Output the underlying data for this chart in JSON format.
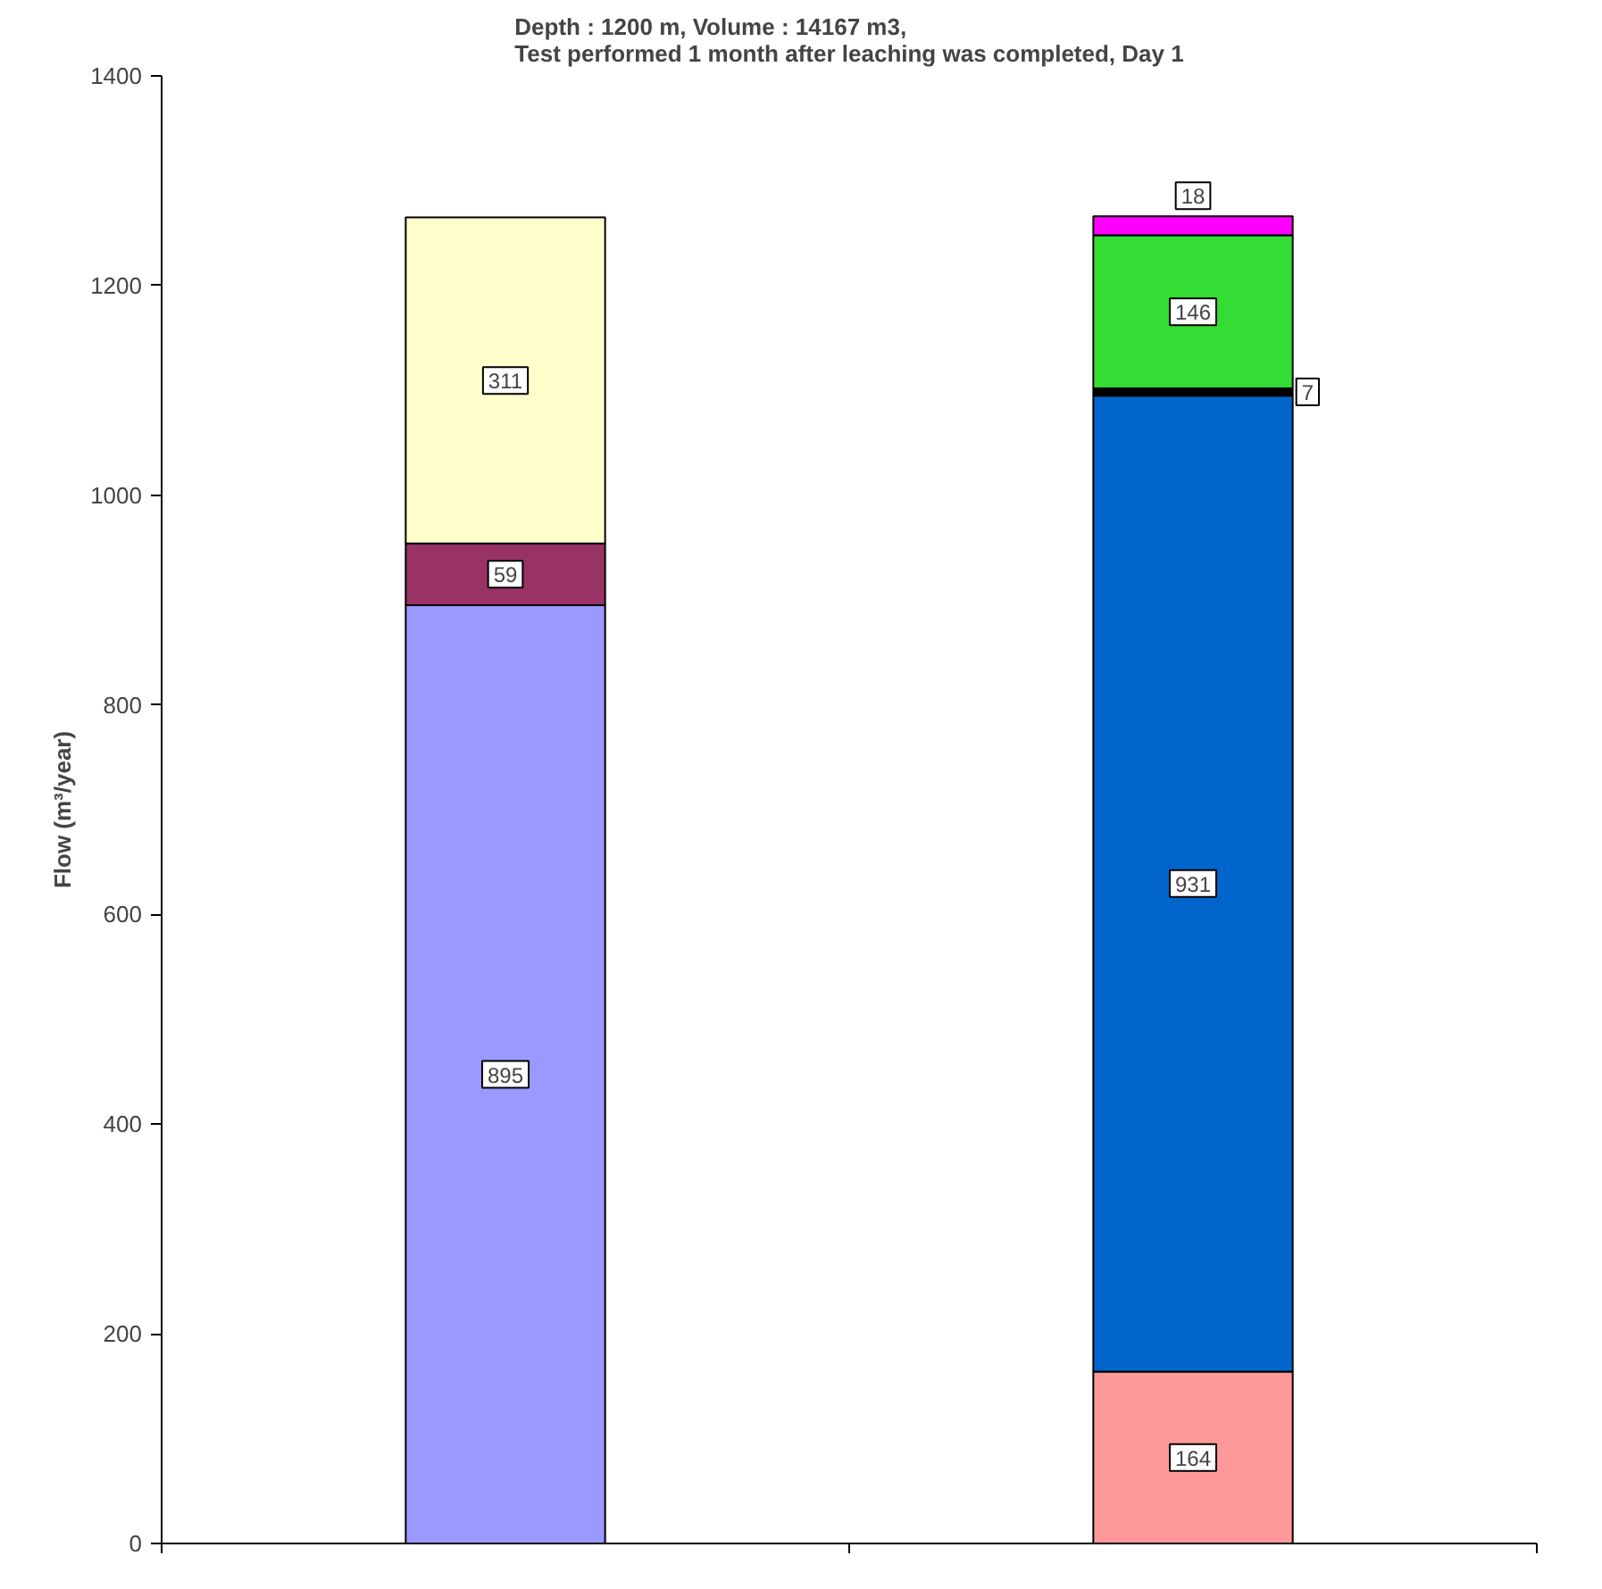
{
  "chart_data": {
    "type": "bar",
    "title": "Depth : 1200 m, Volume : 14167 m3,\nTest performed 1 month after leaching was completed, Day 1",
    "ylabel": "Flow (m³/year)",
    "categories": [
      null,
      null
    ],
    "stacked": true,
    "series": [
      {
        "color": "#9999ff",
        "values": [
          895,
          null
        ]
      },
      {
        "color": "#993366",
        "values": [
          59,
          null
        ]
      },
      {
        "color": "#ffffcc",
        "values": [
          311,
          null
        ]
      },
      {
        "color": "#ff9999",
        "values": [
          null,
          164
        ]
      },
      {
        "color": "#0066cc",
        "values": [
          null,
          931
        ]
      },
      {
        "color": "#000000",
        "values": [
          null,
          7
        ]
      },
      {
        "color": "#33dd33",
        "values": [
          null,
          146
        ]
      },
      {
        "color": "#ff00ff",
        "values": [
          null,
          18
        ]
      }
    ],
    "ylim": [
      0,
      1400
    ],
    "yticks": [
      0,
      200,
      400,
      600,
      800,
      1000,
      1200,
      1400
    ],
    "data_labels": true
  }
}
